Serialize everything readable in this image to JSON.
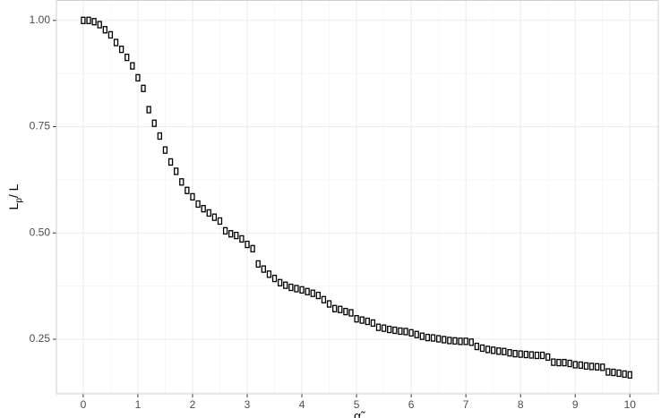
{
  "chart_data": {
    "type": "scatter",
    "xlabel": "α̃",
    "ylabel_parts": [
      "L",
      "p",
      "/ L"
    ],
    "marker_color": "#000000",
    "grid": true,
    "minor_grid": true,
    "xlim": [
      -0.49,
      10.52
    ],
    "ylim": [
      0.1215,
      1.048
    ],
    "xticks": [
      0,
      1,
      2,
      3,
      4,
      5,
      6,
      7,
      8,
      9,
      10
    ],
    "yticks": [
      {
        "value": 0.25,
        "label": "0.25"
      },
      {
        "value": 0.5,
        "label": "0.50"
      },
      {
        "value": 0.75,
        "label": "0.75"
      },
      {
        "value": 1.0,
        "label": "1.00"
      }
    ],
    "x": [
      0,
      0.1,
      0.2,
      0.3,
      0.4,
      0.5,
      0.6,
      0.7,
      0.8,
      0.9,
      1,
      1.1,
      1.2,
      1.3,
      1.4,
      1.5,
      1.6,
      1.7,
      1.8,
      1.9,
      2,
      2.1,
      2.2,
      2.3,
      2.4,
      2.5,
      2.6,
      2.7,
      2.8,
      2.9,
      3,
      3.1,
      3.2,
      3.3,
      3.4,
      3.5,
      3.6,
      3.7,
      3.8,
      3.9,
      4,
      4.1,
      4.2,
      4.3,
      4.4,
      4.5,
      4.6,
      4.7,
      4.8,
      4.9,
      5,
      5.1,
      5.2,
      5.3,
      5.4,
      5.5,
      5.6,
      5.7,
      5.8,
      5.9,
      6,
      6.1,
      6.2,
      6.3,
      6.4,
      6.5,
      6.6,
      6.7,
      6.8,
      6.9,
      7,
      7.1,
      7.2,
      7.3,
      7.4,
      7.5,
      7.6,
      7.7,
      7.8,
      7.9,
      8,
      8.1,
      8.2,
      8.3,
      8.4,
      8.5,
      8.6,
      8.7,
      8.8,
      8.9,
      9,
      9.1,
      9.2,
      9.3,
      9.4,
      9.5,
      9.6,
      9.7,
      9.8,
      9.9,
      10
    ],
    "values": [
      1.0,
      1.0,
      0.997,
      0.99,
      0.978,
      0.966,
      0.948,
      0.932,
      0.913,
      0.893,
      0.865,
      0.84,
      0.79,
      0.758,
      0.728,
      0.695,
      0.667,
      0.645,
      0.62,
      0.6,
      0.585,
      0.568,
      0.557,
      0.547,
      0.537,
      0.528,
      0.505,
      0.498,
      0.494,
      0.486,
      0.473,
      0.463,
      0.427,
      0.415,
      0.403,
      0.393,
      0.383,
      0.377,
      0.372,
      0.369,
      0.366,
      0.362,
      0.358,
      0.353,
      0.343,
      0.333,
      0.322,
      0.32,
      0.315,
      0.312,
      0.298,
      0.295,
      0.292,
      0.288,
      0.278,
      0.276,
      0.273,
      0.271,
      0.269,
      0.268,
      0.265,
      0.261,
      0.257,
      0.254,
      0.253,
      0.251,
      0.249,
      0.247,
      0.246,
      0.245,
      0.245,
      0.243,
      0.233,
      0.229,
      0.226,
      0.224,
      0.222,
      0.221,
      0.218,
      0.216,
      0.215,
      0.214,
      0.213,
      0.212,
      0.212,
      0.208,
      0.196,
      0.195,
      0.195,
      0.193,
      0.19,
      0.189,
      0.187,
      0.186,
      0.185,
      0.184,
      0.173,
      0.172,
      0.17,
      0.168,
      0.166
    ]
  }
}
